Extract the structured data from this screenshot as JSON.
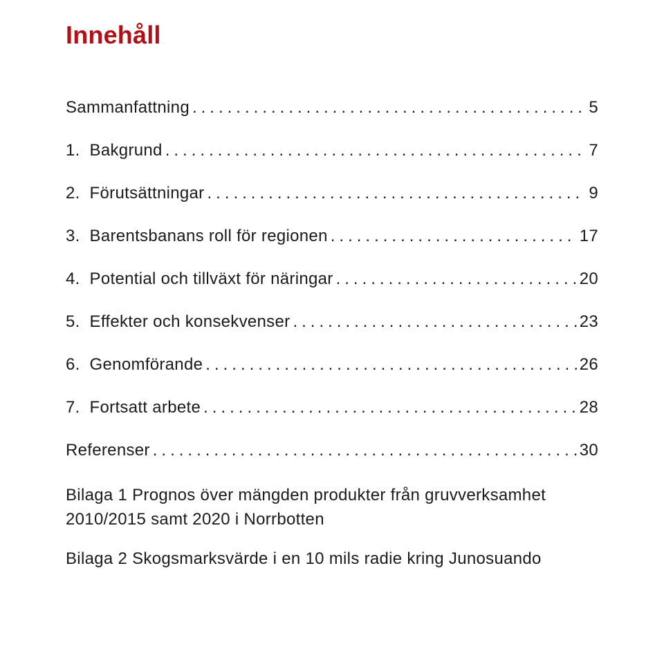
{
  "colors": {
    "title": "#b01116",
    "text": "#1a1a1a",
    "background": "#ffffff"
  },
  "title": "Innehåll",
  "toc": [
    {
      "label": "Sammanfattning",
      "page": " 5"
    },
    {
      "label": "1.  Bakgrund",
      "page": " 7"
    },
    {
      "label": "2.  Förutsättningar",
      "page": " 9"
    },
    {
      "label": "3.  Barentsbanans roll för regionen",
      "page": "17"
    },
    {
      "label": "4.  Potential och tillväxt för näringar",
      "page": "20"
    },
    {
      "label": "5.  Effekter och konsekvenser",
      "page": "23"
    },
    {
      "label": "6.  Genomförande",
      "page": "26"
    },
    {
      "label": "7.  Fortsatt arbete",
      "page": "28"
    },
    {
      "label": "Referenser",
      "page": "30"
    }
  ],
  "appendix": [
    "Bilaga 1 Prognos över mängden produkter från gruvverksamhet 2010/2015 samt 2020 i Norrbotten",
    "Bilaga 2 Skogsmarksvärde i en 10 mils radie kring Junosuando"
  ]
}
